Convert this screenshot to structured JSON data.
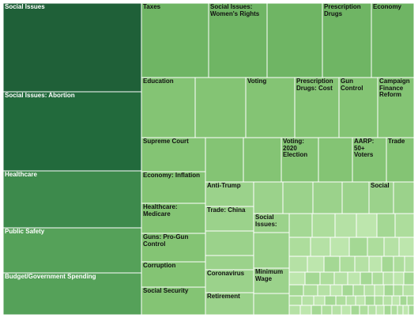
{
  "chart_data": {
    "type": "treemap",
    "title": "",
    "colors": {
      "darkest": "#1f6038",
      "dark": "#226a3c",
      "mid_dark": "#3d8a4c",
      "mid": "#55a159",
      "light": "#6fb564",
      "lighter": "#84c474",
      "lightest": "#9bd28b",
      "faint": "#addd9c"
    },
    "tiles": [
      {
        "label": "Social Issues",
        "tone": "darkest"
      },
      {
        "label": "Social Issues:  Abortion",
        "tone": "dark"
      },
      {
        "label": "Healthcare",
        "tone": "mid_dark"
      },
      {
        "label": "Public Safety",
        "tone": "mid"
      },
      {
        "label": "Budget/Government Spending",
        "tone": "mid"
      },
      {
        "label": "Taxes",
        "tone": "light"
      },
      {
        "label": "Social Issues: Women's Rights",
        "tone": "light"
      },
      {
        "label": "",
        "tone": "light"
      },
      {
        "label": "Prescription Drugs",
        "tone": "light"
      },
      {
        "label": "Economy",
        "tone": "light"
      },
      {
        "label": "Education",
        "tone": "lighter"
      },
      {
        "label": "",
        "tone": "lighter"
      },
      {
        "label": "Voting",
        "tone": "lighter"
      },
      {
        "label": "Prescription Drugs:  Cost",
        "tone": "lighter"
      },
      {
        "label": "Gun Control",
        "tone": "lighter"
      },
      {
        "label": "Campaign Finance Reform",
        "tone": "lighter"
      },
      {
        "label": "Supreme Court",
        "tone": "lighter"
      },
      {
        "label": "",
        "tone": "lighter"
      },
      {
        "label": "",
        "tone": "lighter"
      },
      {
        "label": "Voting: 2020 Election",
        "tone": "lighter"
      },
      {
        "label": "",
        "tone": "lighter"
      },
      {
        "label": "AARP: 50+ Voters",
        "tone": "lighter"
      },
      {
        "label": "Trade",
        "tone": "lighter"
      },
      {
        "label": "Economy:  Inflation",
        "tone": "lighter"
      },
      {
        "label": "Healthcare: Medicare",
        "tone": "lighter"
      },
      {
        "label": "Guns:  Pro-Gun Control",
        "tone": "lighter"
      },
      {
        "label": "Corruption",
        "tone": "lighter"
      },
      {
        "label": "Social Security",
        "tone": "lighter"
      },
      {
        "label": "Anti-Trump",
        "tone": "lightest"
      },
      {
        "label": "",
        "tone": "lightest"
      },
      {
        "label": "",
        "tone": "lightest"
      },
      {
        "label": "",
        "tone": "lightest"
      },
      {
        "label": "",
        "tone": "lightest"
      },
      {
        "label": "Social",
        "tone": "lightest"
      },
      {
        "label": "",
        "tone": "lightest"
      },
      {
        "label": "Trade:  China",
        "tone": "lightest"
      },
      {
        "label": "",
        "tone": "lightest"
      },
      {
        "label": "",
        "tone": "lightest"
      },
      {
        "label": "Coronavirus",
        "tone": "lightest"
      },
      {
        "label": "Retirement",
        "tone": "lightest"
      },
      {
        "label": "Social Issues:",
        "tone": "lightest"
      },
      {
        "label": "",
        "tone": "lightest"
      },
      {
        "label": "Minimum Wage",
        "tone": "lightest"
      },
      {
        "label": "",
        "tone": "lightest"
      }
    ]
  }
}
